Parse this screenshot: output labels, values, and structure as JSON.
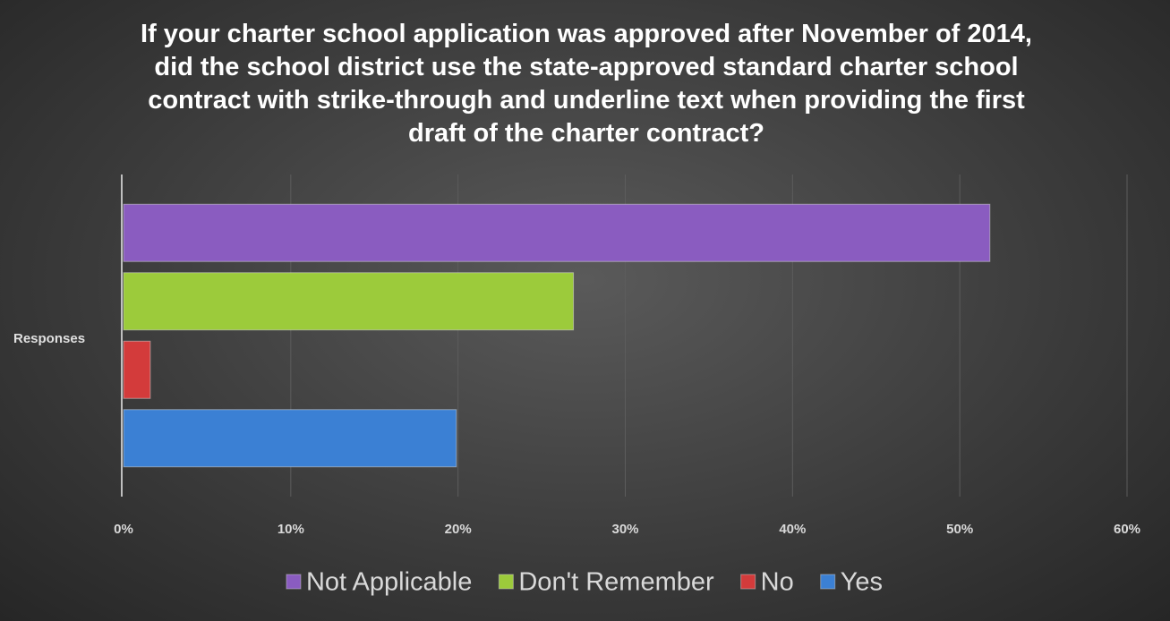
{
  "chart_data": {
    "type": "hbar",
    "title": "If your charter school application was approved after November of 2014, did the school district use the state-approved standard charter school contract with strike-through and underline text when providing the first draft of the charter contract?",
    "categories": [
      "Responses"
    ],
    "series": [
      {
        "name": "Not Applicable",
        "color": "#8a5cc0",
        "values": [
          51.8
        ]
      },
      {
        "name": "Don't Remember",
        "color": "#9ccb3b",
        "values": [
          26.9
        ]
      },
      {
        "name": "No",
        "color": "#d33b3b",
        "values": [
          1.6
        ]
      },
      {
        "name": "Yes",
        "color": "#3b80d4",
        "values": [
          19.9
        ]
      }
    ],
    "xlim": [
      0,
      60
    ],
    "xticks": [
      {
        "value": 0,
        "label": "0%"
      },
      {
        "value": 10,
        "label": "10%"
      },
      {
        "value": 20,
        "label": "20%"
      },
      {
        "value": 30,
        "label": "30%"
      },
      {
        "value": 40,
        "label": "40%"
      },
      {
        "value": 50,
        "label": "50%"
      },
      {
        "value": 60,
        "label": "60%"
      }
    ],
    "grid": true,
    "legend": "bottom"
  }
}
